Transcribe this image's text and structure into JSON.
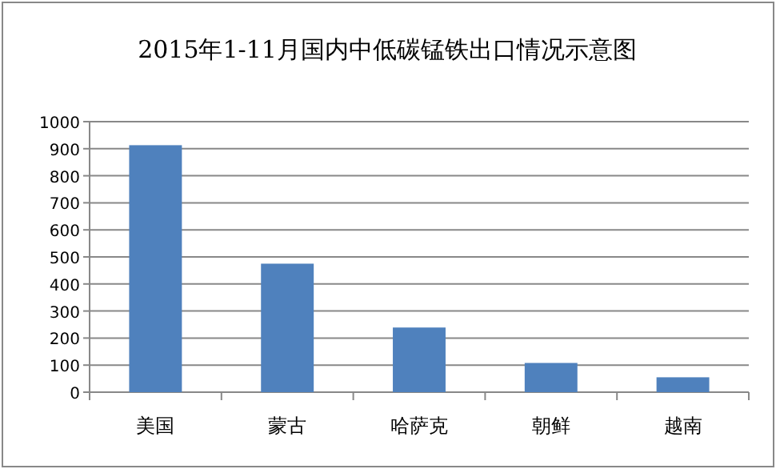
{
  "chart_data": {
    "type": "bar",
    "title": "2015年1-11月国内中低碳锰铁出口情况示意图",
    "categories": [
      "美国",
      "蒙古",
      "哈萨克",
      "朝鲜",
      "越南"
    ],
    "values": [
      913,
      475,
      239,
      108,
      55
    ],
    "color": "#4f81bd",
    "ylim": [
      0,
      1000
    ],
    "yticks": [
      0,
      100,
      200,
      300,
      400,
      500,
      600,
      700,
      800,
      900,
      1000
    ],
    "grid": "y"
  }
}
